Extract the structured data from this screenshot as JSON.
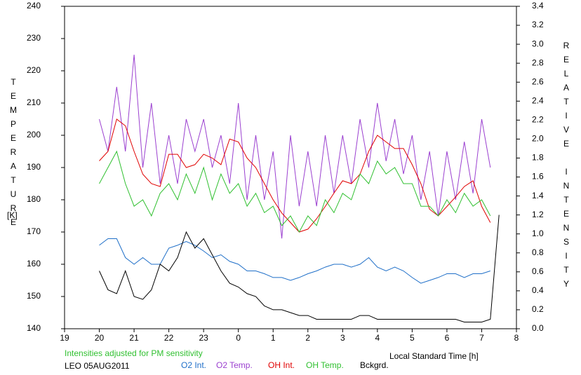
{
  "chart_data": {
    "type": "line",
    "y_label": "TEMPERATURE",
    "y_unit": "[K]",
    "y2_label": "RELATIVE INTENSITY",
    "x_label": "Local Standard Time [h]",
    "note": "Intensities adjusted for PM sensitivity",
    "station": "LEO 05AUG2011",
    "xlim": [
      19,
      32
    ],
    "xticks": [
      19,
      20,
      21,
      22,
      23,
      {
        "value": 24,
        "label": "0"
      },
      {
        "value": 25,
        "label": "1"
      },
      {
        "value": 26,
        "label": "2"
      },
      {
        "value": 27,
        "label": "3"
      },
      {
        "value": 28,
        "label": "4"
      },
      {
        "value": 29,
        "label": "5"
      },
      {
        "value": 30,
        "label": "6"
      },
      {
        "value": 31,
        "label": "7"
      },
      {
        "value": 32,
        "label": "8"
      }
    ],
    "ylim": [
      140,
      240
    ],
    "yticks": [
      140,
      150,
      160,
      170,
      180,
      190,
      200,
      210,
      220,
      230,
      240
    ],
    "y2lim": [
      0,
      3.4
    ],
    "y2ticks": [
      {
        "value": 0,
        "label": "0.0"
      },
      0.2,
      0.4,
      0.6,
      0.8,
      {
        "value": 1,
        "label": "1.0"
      },
      1.2,
      1.4,
      1.6,
      1.8,
      {
        "value": 2,
        "label": "2.0"
      },
      2.2,
      2.4,
      2.6,
      2.8,
      {
        "value": 3,
        "label": "3.0"
      },
      3.2,
      3.4
    ],
    "x": [
      20,
      20.25,
      20.5,
      20.75,
      21,
      21.25,
      21.5,
      21.75,
      22,
      22.25,
      22.5,
      22.75,
      23,
      23.25,
      23.5,
      23.75,
      24,
      24.25,
      24.5,
      24.75,
      25,
      25.25,
      25.5,
      25.75,
      26,
      26.25,
      26.5,
      26.75,
      27,
      27.25,
      27.5,
      27.75,
      28,
      28.25,
      28.5,
      28.75,
      29,
      29.25,
      29.5,
      29.75,
      30,
      30.25,
      30.5,
      30.75,
      31,
      31.25,
      31.5
    ],
    "series": [
      {
        "name": "O2 Int.",
        "color": "#1f6fc8",
        "axis": "y2",
        "values": [
          0.88,
          0.95,
          0.95,
          0.75,
          0.68,
          0.75,
          0.68,
          0.68,
          0.85,
          0.88,
          0.92,
          0.88,
          0.82,
          0.75,
          0.78,
          0.71,
          0.68,
          0.61,
          0.61,
          0.58,
          0.54,
          0.54,
          0.51,
          0.54,
          0.58,
          0.61,
          0.65,
          0.68,
          0.68,
          0.65,
          0.68,
          0.75,
          0.65,
          0.61,
          0.65,
          0.61,
          0.54,
          0.48,
          0.51,
          0.54,
          0.58,
          0.58,
          0.54,
          0.58,
          0.58,
          0.61,
          null
        ]
      },
      {
        "name": "O2 Temp.",
        "color": "#9b40d0",
        "values": [
          205,
          195,
          215,
          195,
          225,
          190,
          210,
          185,
          200,
          185,
          205,
          195,
          205,
          190,
          200,
          185,
          210,
          180,
          200,
          180,
          195,
          168,
          200,
          178,
          195,
          178,
          200,
          182,
          200,
          185,
          205,
          190,
          210,
          192,
          205,
          188,
          200,
          180,
          195,
          175,
          195,
          180,
          198,
          182,
          205,
          190,
          null
        ]
      },
      {
        "name": "OH Int.",
        "color": "#e00000",
        "axis": "y2",
        "values": [
          1.77,
          1.87,
          2.21,
          2.14,
          1.87,
          1.63,
          1.53,
          1.5,
          1.84,
          1.84,
          1.7,
          1.73,
          1.84,
          1.8,
          1.73,
          2.0,
          1.97,
          1.8,
          1.7,
          1.53,
          1.36,
          1.22,
          1.12,
          1.02,
          1.05,
          1.16,
          1.29,
          1.43,
          1.56,
          1.53,
          1.63,
          1.87,
          2.04,
          1.97,
          1.9,
          1.9,
          1.73,
          1.53,
          1.26,
          1.19,
          1.29,
          1.39,
          1.5,
          1.56,
          1.29,
          1.12,
          null
        ]
      },
      {
        "name": "OH Temp.",
        "color": "#30c030",
        "values": [
          185,
          190,
          195,
          185,
          178,
          180,
          175,
          182,
          185,
          180,
          188,
          182,
          190,
          180,
          188,
          182,
          185,
          178,
          182,
          176,
          178,
          172,
          175,
          170,
          175,
          172,
          180,
          176,
          182,
          180,
          188,
          185,
          192,
          188,
          190,
          185,
          185,
          178,
          178,
          175,
          180,
          176,
          182,
          178,
          180,
          175,
          null
        ]
      },
      {
        "name": "Bckgrd.",
        "color": "#000000",
        "axis": "y2",
        "values": [
          0.61,
          0.41,
          0.37,
          0.61,
          0.34,
          0.31,
          0.41,
          0.68,
          0.61,
          0.75,
          1.02,
          0.85,
          0.95,
          0.78,
          0.61,
          0.48,
          0.44,
          0.37,
          0.34,
          0.24,
          0.2,
          0.2,
          0.17,
          0.14,
          0.14,
          0.1,
          0.1,
          0.1,
          0.1,
          0.1,
          0.14,
          0.14,
          0.1,
          0.1,
          0.1,
          0.1,
          0.1,
          0.1,
          0.1,
          0.1,
          0.1,
          0.1,
          0.07,
          0.07,
          0.07,
          0.1,
          1.2
        ]
      }
    ]
  }
}
